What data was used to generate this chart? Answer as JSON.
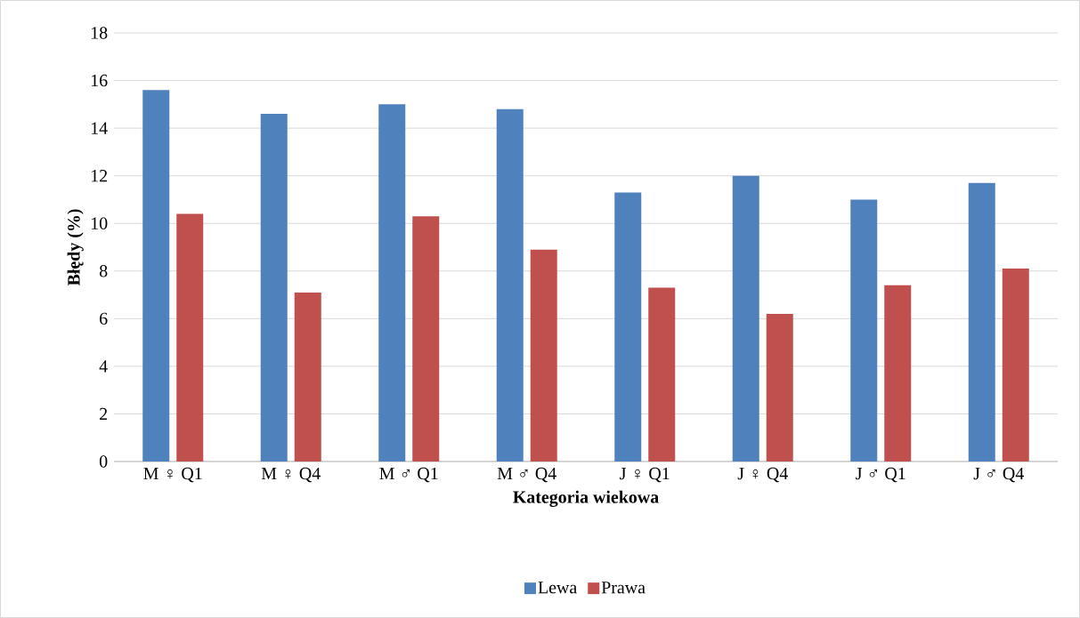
{
  "chart_data": {
    "type": "bar",
    "xlabel": "Kategoria wiekowa",
    "ylabel": "Błędy (%)",
    "categories": [
      "M ♀ Q1",
      "M ♀ Q4",
      "M ♂ Q1",
      "M ♂ Q4",
      "J ♀ Q1",
      "J ♀ Q4",
      "J ♂ Q1",
      "J ♂ Q4"
    ],
    "series": [
      {
        "name": "Lewa",
        "color": "#4f81bd",
        "values": [
          15.6,
          14.6,
          15.0,
          14.8,
          11.3,
          12.0,
          11.0,
          11.7
        ]
      },
      {
        "name": "Prawa",
        "color": "#c0504d",
        "values": [
          10.4,
          7.1,
          10.3,
          8.9,
          7.3,
          6.2,
          7.4,
          8.1
        ]
      }
    ],
    "ylim": [
      0,
      18
    ],
    "yticks": [
      0,
      2,
      4,
      6,
      8,
      10,
      12,
      14,
      16,
      18
    ],
    "grid": "y",
    "legend": "bottom"
  }
}
